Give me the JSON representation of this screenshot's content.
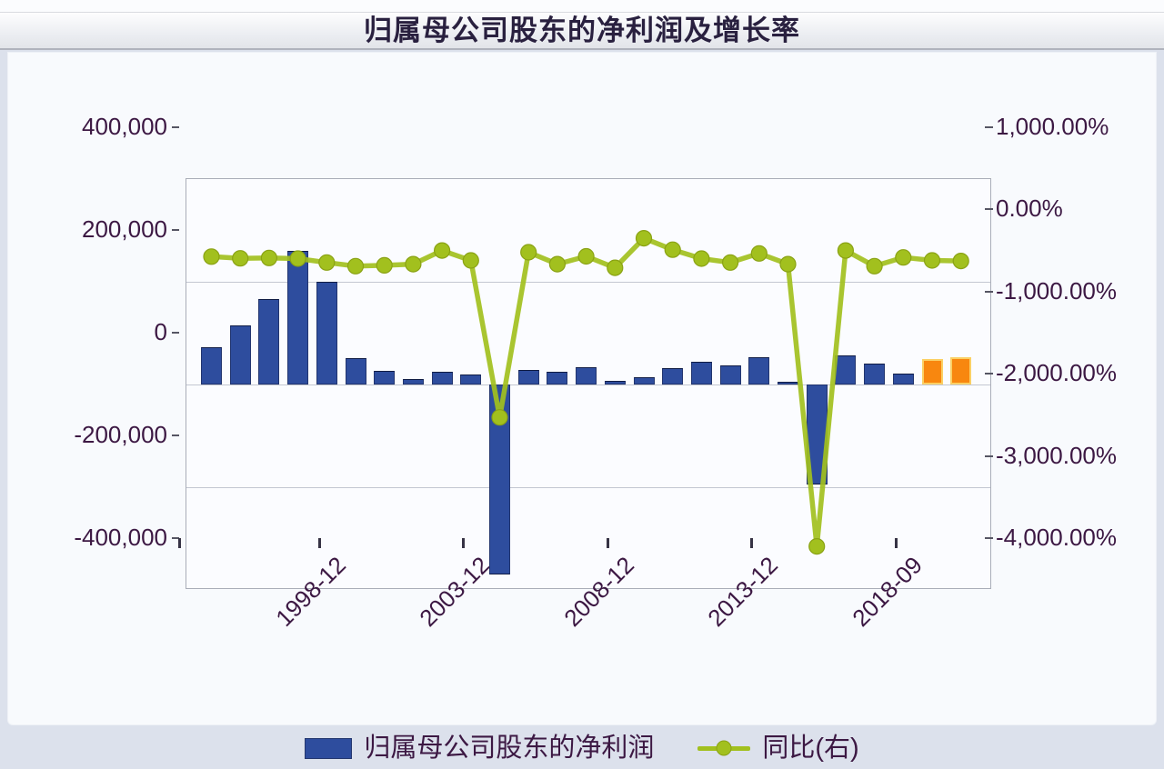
{
  "header": {
    "title": "归属母公司股东的净利润及增长率"
  },
  "legend": {
    "position": "bottom",
    "items": [
      {
        "label": "归属母公司股东的净利润",
        "marker": "bar-swatch",
        "color": "#2e4d9e"
      },
      {
        "label": "同比(右)",
        "marker": "line-dot",
        "color": "#a2c01e"
      }
    ]
  },
  "chart_data": {
    "type": "combo-bar-line",
    "title": "归属母公司股东的净利润及增长率",
    "n_points": 27,
    "grid": "horizontal-only",
    "legend_position": "bottom",
    "x_axis": {
      "tick_labels": [
        "1998-12",
        "2003-12",
        "2008-12",
        "2013-12",
        "2018-09"
      ],
      "tick_point_indices": [
        4,
        9,
        14,
        19,
        24
      ],
      "edge_tick_at_plot_left": true
    },
    "left_axis": {
      "range": [
        -400000,
        400000
      ],
      "tick_values": [
        400000,
        200000,
        0,
        -200000,
        -400000
      ],
      "tick_labels": [
        "400,000",
        "200,000",
        "0",
        "-200,000",
        "-400,000"
      ],
      "gridline_values": [
        200000,
        0,
        -200000
      ]
    },
    "right_axis": {
      "range": [
        -4000,
        1000
      ],
      "tick_values": [
        1000,
        0,
        -1000,
        -2000,
        -3000,
        -4000
      ],
      "tick_labels": [
        "1,000.00%",
        "0.00%",
        "-1,000.00%",
        "-2,000.00%",
        "-3,000.00%",
        "-4,000.00%"
      ]
    },
    "series": [
      {
        "name": "归属母公司股东的净利润",
        "type": "bar",
        "axis": "left",
        "values": [
          72000,
          115000,
          166000,
          260000,
          200000,
          51000,
          27000,
          10000,
          24000,
          20000,
          -370000,
          28000,
          25000,
          34000,
          7500,
          15000,
          31000,
          45000,
          37000,
          53000,
          6000,
          -195000,
          57000,
          41000,
          22000,
          50000,
          53000
        ],
        "highlight_indices": [
          25,
          26
        ],
        "color": "#2e4d9e",
        "highlight_color": "#f8870f"
      },
      {
        "name": "同比(右)",
        "type": "line",
        "axis": "right",
        "values": [
          56,
          35,
          40,
          32,
          -15,
          -60,
          -50,
          -35,
          130,
          10,
          -1900,
          110,
          -35,
          60,
          -80,
          280,
          140,
          32,
          -15,
          95,
          -35,
          -3470,
          130,
          -60,
          47,
          10,
          3
        ],
        "color": "#a2c01e"
      }
    ]
  },
  "colors": {
    "bar": "#2e4d9e",
    "bar_border": "#22356f",
    "bar_forecast": "#f8870f",
    "bar_forecast_border": "#fbd064",
    "line": "#a2c01e",
    "dot_border": "#8aa214",
    "axis_text": "#3c1843",
    "title_text": "#29203f",
    "grid": "#c3c7d1",
    "plot_border": "#a9adb8",
    "plot_bg": "#fbfcff",
    "panel_bg": "#f8fafd",
    "page_bg": "#dce1ec"
  }
}
